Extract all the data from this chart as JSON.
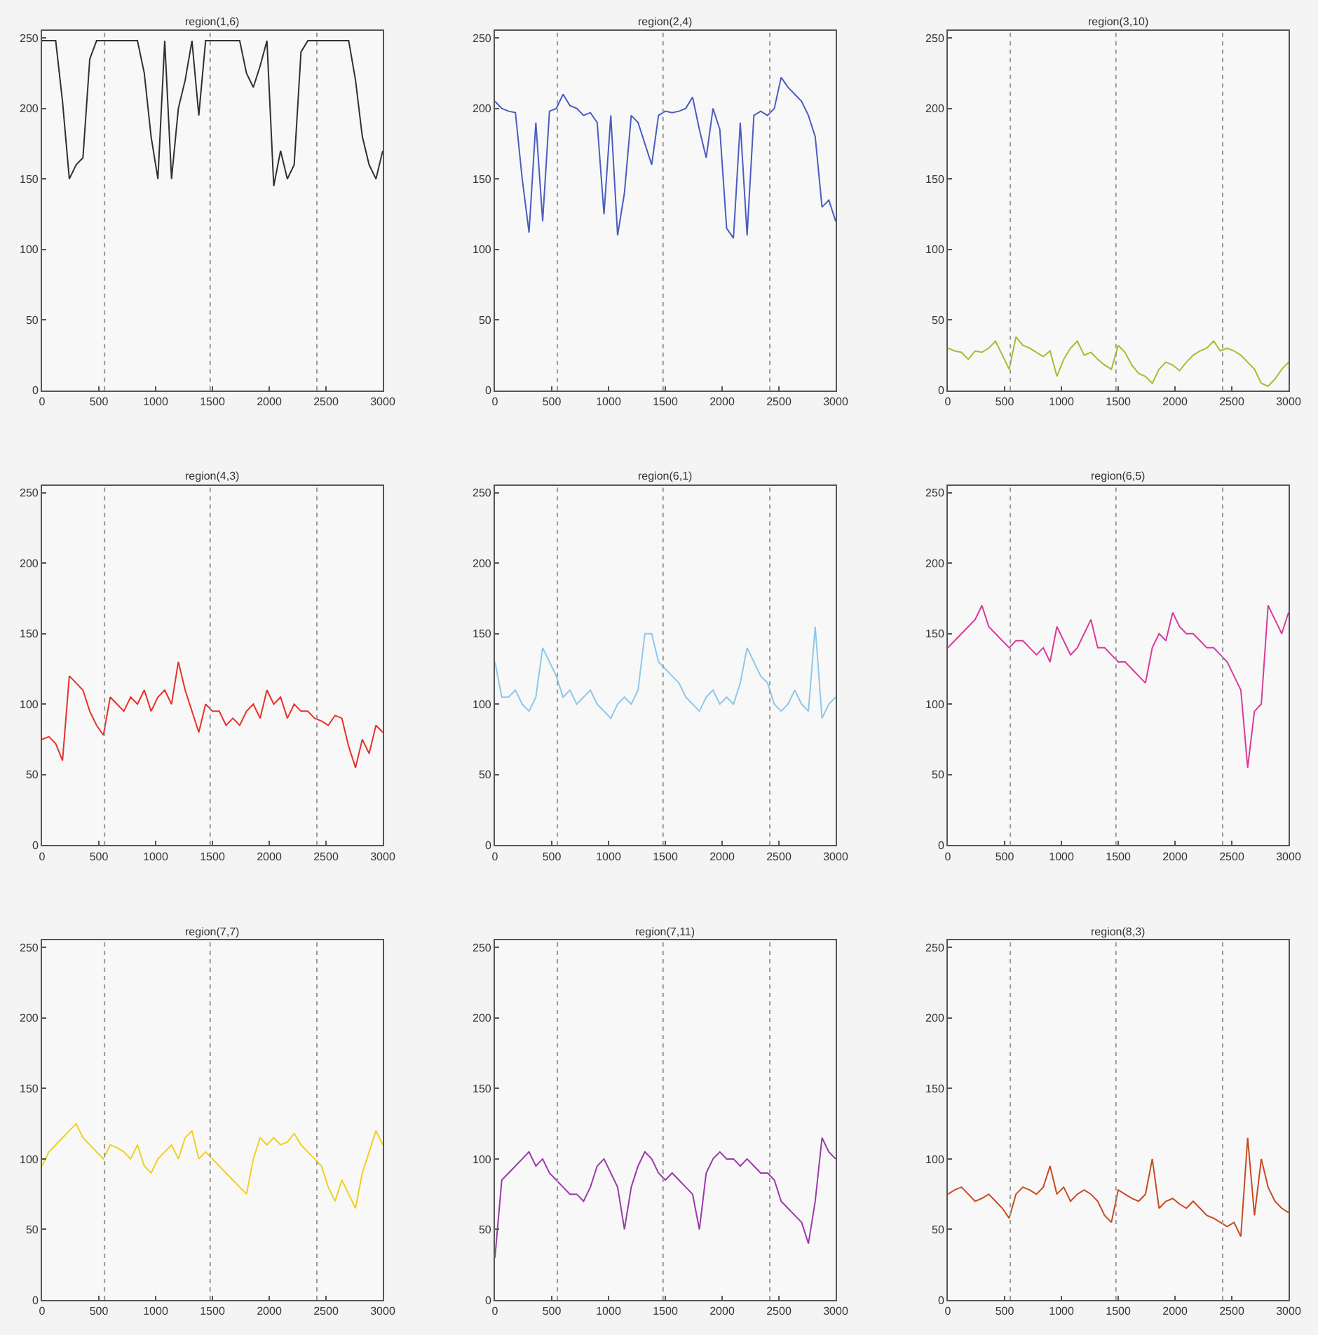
{
  "chart_data": [
    {
      "type": "line",
      "title": "region(1,6)",
      "x": [
        0,
        60,
        120,
        180,
        240,
        300,
        360,
        420,
        480,
        540,
        600,
        660,
        720,
        780,
        840,
        900,
        960,
        1020,
        1080,
        1140,
        1200,
        1260,
        1320,
        1380,
        1440,
        1500,
        1560,
        1620,
        1680,
        1740,
        1800,
        1860,
        1920,
        1980,
        2040,
        2100,
        2160,
        2220,
        2280,
        2340,
        2400,
        2460,
        2520,
        2580,
        2640,
        2700,
        2760,
        2820,
        2880,
        2940,
        3000
      ],
      "series": [
        {
          "color": "#303030",
          "values": [
            248,
            248,
            248,
            205,
            150,
            160,
            165,
            235,
            248,
            248,
            248,
            248,
            248,
            248,
            248,
            225,
            180,
            150,
            248,
            150,
            200,
            220,
            248,
            195,
            248,
            248,
            248,
            248,
            248,
            248,
            225,
            215,
            230,
            248,
            145,
            170,
            150,
            160,
            240,
            248,
            248,
            248,
            248,
            248,
            248,
            248,
            220,
            180,
            160,
            150,
            170
          ]
        }
      ],
      "xlim": [
        0,
        3000
      ],
      "ylim": [
        0,
        255
      ],
      "xticks": [
        0,
        500,
        1000,
        1500,
        2000,
        2500,
        3000
      ],
      "yticks": [
        0,
        50,
        100,
        150,
        200,
        250
      ],
      "ref_lines": [
        {
          "axis": "x",
          "value": 550,
          "line_style": "dotted",
          "color": "#999999"
        },
        {
          "axis": "x",
          "value": 1480,
          "line_style": "dotted",
          "color": "#999999"
        },
        {
          "axis": "x",
          "value": 2420,
          "line_style": "dotted",
          "color": "#999999"
        }
      ]
    },
    {
      "type": "line",
      "title": "region(2,4)",
      "x": [
        0,
        60,
        120,
        180,
        240,
        300,
        360,
        420,
        480,
        540,
        600,
        660,
        720,
        780,
        840,
        900,
        960,
        1020,
        1080,
        1140,
        1200,
        1260,
        1320,
        1380,
        1440,
        1500,
        1560,
        1620,
        1680,
        1740,
        1800,
        1860,
        1920,
        1980,
        2040,
        2100,
        2160,
        2220,
        2280,
        2340,
        2400,
        2460,
        2520,
        2580,
        2640,
        2700,
        2760,
        2820,
        2880,
        2940,
        3000
      ],
      "series": [
        {
          "color": "#4a5cc0",
          "values": [
            205,
            200,
            198,
            197,
            150,
            112,
            190,
            120,
            198,
            200,
            210,
            202,
            200,
            195,
            197,
            190,
            125,
            195,
            110,
            140,
            195,
            190,
            175,
            160,
            195,
            198,
            197,
            198,
            200,
            208,
            185,
            165,
            200,
            185,
            115,
            108,
            190,
            110,
            195,
            198,
            195,
            200,
            222,
            215,
            210,
            205,
            195,
            180,
            130,
            135,
            120
          ]
        }
      ],
      "xlim": [
        0,
        3000
      ],
      "ylim": [
        0,
        255
      ],
      "xticks": [
        0,
        500,
        1000,
        1500,
        2000,
        2500,
        3000
      ],
      "yticks": [
        0,
        50,
        100,
        150,
        200,
        250
      ],
      "ref_lines": [
        {
          "axis": "x",
          "value": 550,
          "line_style": "dotted",
          "color": "#999999"
        },
        {
          "axis": "x",
          "value": 1480,
          "line_style": "dotted",
          "color": "#999999"
        },
        {
          "axis": "x",
          "value": 2420,
          "line_style": "dotted",
          "color": "#999999"
        }
      ]
    },
    {
      "type": "line",
      "title": "region(3,10)",
      "x": [
        0,
        60,
        120,
        180,
        240,
        300,
        360,
        420,
        480,
        540,
        600,
        660,
        720,
        780,
        840,
        900,
        960,
        1020,
        1080,
        1140,
        1200,
        1260,
        1320,
        1380,
        1440,
        1500,
        1560,
        1620,
        1680,
        1740,
        1800,
        1860,
        1920,
        1980,
        2040,
        2100,
        2160,
        2220,
        2280,
        2340,
        2400,
        2460,
        2520,
        2580,
        2640,
        2700,
        2760,
        2820,
        2880,
        2940,
        3000
      ],
      "series": [
        {
          "color": "#a0c030",
          "values": [
            30,
            28,
            27,
            22,
            28,
            27,
            30,
            35,
            25,
            15,
            38,
            32,
            30,
            27,
            24,
            28,
            10,
            22,
            30,
            35,
            25,
            27,
            22,
            18,
            15,
            32,
            27,
            18,
            12,
            10,
            5,
            15,
            20,
            18,
            14,
            20,
            25,
            28,
            30,
            35,
            28,
            30,
            28,
            25,
            20,
            15,
            5,
            3,
            8,
            15,
            20
          ]
        }
      ],
      "xlim": [
        0,
        3000
      ],
      "ylim": [
        0,
        255
      ],
      "xticks": [
        0,
        500,
        1000,
        1500,
        2000,
        2500,
        3000
      ],
      "yticks": [
        0,
        50,
        100,
        150,
        200,
        250
      ],
      "ref_lines": [
        {
          "axis": "x",
          "value": 550,
          "line_style": "dotted",
          "color": "#999999"
        },
        {
          "axis": "x",
          "value": 1480,
          "line_style": "dotted",
          "color": "#999999"
        },
        {
          "axis": "x",
          "value": 2420,
          "line_style": "dotted",
          "color": "#999999"
        }
      ]
    },
    {
      "type": "line",
      "title": "region(4,3)",
      "x": [
        0,
        60,
        120,
        180,
        240,
        300,
        360,
        420,
        480,
        540,
        600,
        660,
        720,
        780,
        840,
        900,
        960,
        1020,
        1080,
        1140,
        1200,
        1260,
        1320,
        1380,
        1440,
        1500,
        1560,
        1620,
        1680,
        1740,
        1800,
        1860,
        1920,
        1980,
        2040,
        2100,
        2160,
        2220,
        2280,
        2340,
        2400,
        2460,
        2520,
        2580,
        2640,
        2700,
        2760,
        2820,
        2880,
        2940,
        3000
      ],
      "series": [
        {
          "color": "#e8302a",
          "values": [
            75,
            77,
            72,
            60,
            120,
            115,
            110,
            95,
            85,
            78,
            105,
            100,
            95,
            105,
            100,
            110,
            95,
            105,
            110,
            100,
            130,
            110,
            95,
            80,
            100,
            95,
            95,
            85,
            90,
            85,
            95,
            100,
            90,
            110,
            100,
            105,
            90,
            100,
            95,
            95,
            90,
            88,
            85,
            92,
            90,
            70,
            55,
            75,
            65,
            85,
            80
          ]
        }
      ],
      "xlim": [
        0,
        3000
      ],
      "ylim": [
        0,
        255
      ],
      "xticks": [
        0,
        500,
        1000,
        1500,
        2000,
        2500,
        3000
      ],
      "yticks": [
        0,
        50,
        100,
        150,
        200,
        250
      ],
      "ref_lines": [
        {
          "axis": "x",
          "value": 550,
          "line_style": "dotted",
          "color": "#999999"
        },
        {
          "axis": "x",
          "value": 1480,
          "line_style": "dotted",
          "color": "#999999"
        },
        {
          "axis": "x",
          "value": 2420,
          "line_style": "dotted",
          "color": "#999999"
        }
      ]
    },
    {
      "type": "line",
      "title": "region(6,1)",
      "x": [
        0,
        60,
        120,
        180,
        240,
        300,
        360,
        420,
        480,
        540,
        600,
        660,
        720,
        780,
        840,
        900,
        960,
        1020,
        1080,
        1140,
        1200,
        1260,
        1320,
        1380,
        1440,
        1500,
        1560,
        1620,
        1680,
        1740,
        1800,
        1860,
        1920,
        1980,
        2040,
        2100,
        2160,
        2220,
        2280,
        2340,
        2400,
        2460,
        2520,
        2580,
        2640,
        2700,
        2760,
        2820,
        2880,
        2940,
        3000
      ],
      "series": [
        {
          "color": "#8fc8e8",
          "values": [
            130,
            105,
            105,
            110,
            100,
            95,
            105,
            140,
            130,
            120,
            105,
            110,
            100,
            105,
            110,
            100,
            95,
            90,
            100,
            105,
            100,
            110,
            150,
            150,
            130,
            125,
            120,
            115,
            105,
            100,
            95,
            105,
            110,
            100,
            105,
            100,
            115,
            140,
            130,
            120,
            115,
            100,
            95,
            100,
            110,
            100,
            95,
            155,
            90,
            100,
            105
          ]
        }
      ],
      "xlim": [
        0,
        3000
      ],
      "ylim": [
        0,
        255
      ],
      "xticks": [
        0,
        500,
        1000,
        1500,
        2000,
        2500,
        3000
      ],
      "yticks": [
        0,
        50,
        100,
        150,
        200,
        250
      ],
      "ref_lines": [
        {
          "axis": "x",
          "value": 550,
          "line_style": "dotted",
          "color": "#999999"
        },
        {
          "axis": "x",
          "value": 1480,
          "line_style": "dotted",
          "color": "#999999"
        },
        {
          "axis": "x",
          "value": 2420,
          "line_style": "dotted",
          "color": "#999999"
        }
      ]
    },
    {
      "type": "line",
      "title": "region(6,5)",
      "x": [
        0,
        60,
        120,
        180,
        240,
        300,
        360,
        420,
        480,
        540,
        600,
        660,
        720,
        780,
        840,
        900,
        960,
        1020,
        1080,
        1140,
        1200,
        1260,
        1320,
        1380,
        1440,
        1500,
        1560,
        1620,
        1680,
        1740,
        1800,
        1860,
        1920,
        1980,
        2040,
        2100,
        2160,
        2220,
        2280,
        2340,
        2400,
        2460,
        2520,
        2580,
        2640,
        2700,
        2760,
        2820,
        2880,
        2940,
        3000
      ],
      "series": [
        {
          "color": "#d93a9a",
          "values": [
            140,
            145,
            150,
            155,
            160,
            170,
            155,
            150,
            145,
            140,
            145,
            145,
            140,
            135,
            140,
            130,
            155,
            145,
            135,
            140,
            150,
            160,
            140,
            140,
            135,
            130,
            130,
            125,
            120,
            115,
            140,
            150,
            145,
            165,
            155,
            150,
            150,
            145,
            140,
            140,
            135,
            130,
            120,
            110,
            55,
            95,
            100,
            170,
            160,
            150,
            165
          ]
        }
      ],
      "xlim": [
        0,
        3000
      ],
      "ylim": [
        0,
        255
      ],
      "xticks": [
        0,
        500,
        1000,
        1500,
        2000,
        2500,
        3000
      ],
      "yticks": [
        0,
        50,
        100,
        150,
        200,
        250
      ],
      "ref_lines": [
        {
          "axis": "x",
          "value": 550,
          "line_style": "dotted",
          "color": "#999999"
        },
        {
          "axis": "x",
          "value": 1480,
          "line_style": "dotted",
          "color": "#999999"
        },
        {
          "axis": "x",
          "value": 2420,
          "line_style": "dotted",
          "color": "#999999"
        }
      ]
    },
    {
      "type": "line",
      "title": "region(7,7)",
      "x": [
        0,
        60,
        120,
        180,
        240,
        300,
        360,
        420,
        480,
        540,
        600,
        660,
        720,
        780,
        840,
        900,
        960,
        1020,
        1080,
        1140,
        1200,
        1260,
        1320,
        1380,
        1440,
        1500,
        1560,
        1620,
        1680,
        1740,
        1800,
        1860,
        1920,
        1980,
        2040,
        2100,
        2160,
        2220,
        2280,
        2340,
        2400,
        2460,
        2520,
        2580,
        2640,
        2700,
        2760,
        2820,
        2880,
        2940,
        3000
      ],
      "series": [
        {
          "color": "#f0d020",
          "values": [
            95,
            105,
            110,
            115,
            120,
            125,
            115,
            110,
            105,
            100,
            110,
            108,
            105,
            100,
            110,
            95,
            90,
            100,
            105,
            110,
            100,
            115,
            120,
            100,
            105,
            100,
            95,
            90,
            85,
            80,
            75,
            100,
            115,
            110,
            115,
            110,
            112,
            118,
            110,
            105,
            100,
            95,
            80,
            70,
            85,
            75,
            65,
            90,
            105,
            120,
            110
          ]
        }
      ],
      "xlim": [
        0,
        3000
      ],
      "ylim": [
        0,
        255
      ],
      "xticks": [
        0,
        500,
        1000,
        1500,
        2000,
        2500,
        3000
      ],
      "yticks": [
        0,
        50,
        100,
        150,
        200,
        250
      ],
      "ref_lines": [
        {
          "axis": "x",
          "value": 550,
          "line_style": "dotted",
          "color": "#999999"
        },
        {
          "axis": "x",
          "value": 1480,
          "line_style": "dotted",
          "color": "#999999"
        },
        {
          "axis": "x",
          "value": 2420,
          "line_style": "dotted",
          "color": "#999999"
        }
      ]
    },
    {
      "type": "line",
      "title": "region(7,11)",
      "x": [
        0,
        60,
        120,
        180,
        240,
        300,
        360,
        420,
        480,
        540,
        600,
        660,
        720,
        780,
        840,
        900,
        960,
        1020,
        1080,
        1140,
        1200,
        1260,
        1320,
        1380,
        1440,
        1500,
        1560,
        1620,
        1680,
        1740,
        1800,
        1860,
        1920,
        1980,
        2040,
        2100,
        2160,
        2220,
        2280,
        2340,
        2400,
        2460,
        2520,
        2580,
        2640,
        2700,
        2760,
        2820,
        2880,
        2940,
        3000
      ],
      "series": [
        {
          "color": "#9a3aaa",
          "values": [
            30,
            85,
            90,
            95,
            100,
            105,
            95,
            100,
            90,
            85,
            80,
            75,
            75,
            70,
            80,
            95,
            100,
            90,
            80,
            50,
            80,
            95,
            105,
            100,
            90,
            85,
            90,
            85,
            80,
            75,
            50,
            90,
            100,
            105,
            100,
            100,
            95,
            100,
            95,
            90,
            90,
            85,
            70,
            65,
            60,
            55,
            40,
            70,
            115,
            105,
            100
          ]
        }
      ],
      "xlim": [
        0,
        3000
      ],
      "ylim": [
        0,
        255
      ],
      "xticks": [
        0,
        500,
        1000,
        1500,
        2000,
        2500,
        3000
      ],
      "yticks": [
        0,
        50,
        100,
        150,
        200,
        250
      ],
      "ref_lines": [
        {
          "axis": "x",
          "value": 550,
          "line_style": "dotted",
          "color": "#999999"
        },
        {
          "axis": "x",
          "value": 1480,
          "line_style": "dotted",
          "color": "#999999"
        },
        {
          "axis": "x",
          "value": 2420,
          "line_style": "dotted",
          "color": "#999999"
        }
      ]
    },
    {
      "type": "line",
      "title": "region(8,3)",
      "x": [
        0,
        60,
        120,
        180,
        240,
        300,
        360,
        420,
        480,
        540,
        600,
        660,
        720,
        780,
        840,
        900,
        960,
        1020,
        1080,
        1140,
        1200,
        1260,
        1320,
        1380,
        1440,
        1500,
        1560,
        1620,
        1680,
        1740,
        1800,
        1860,
        1920,
        1980,
        2040,
        2100,
        2160,
        2220,
        2280,
        2340,
        2400,
        2460,
        2520,
        2580,
        2640,
        2700,
        2760,
        2820,
        2880,
        2940,
        3000
      ],
      "series": [
        {
          "color": "#c84a20",
          "values": [
            75,
            78,
            80,
            75,
            70,
            72,
            75,
            70,
            65,
            58,
            75,
            80,
            78,
            75,
            80,
            95,
            75,
            80,
            70,
            75,
            78,
            75,
            70,
            60,
            55,
            78,
            75,
            72,
            70,
            75,
            100,
            65,
            70,
            72,
            68,
            65,
            70,
            65,
            60,
            58,
            55,
            52,
            55,
            45,
            115,
            60,
            100,
            80,
            70,
            65,
            62
          ]
        }
      ],
      "xlim": [
        0,
        3000
      ],
      "ylim": [
        0,
        255
      ],
      "xticks": [
        0,
        500,
        1000,
        1500,
        2000,
        2500,
        3000
      ],
      "yticks": [
        0,
        50,
        100,
        150,
        200,
        250
      ],
      "ref_lines": [
        {
          "axis": "x",
          "value": 550,
          "line_style": "dotted",
          "color": "#999999"
        },
        {
          "axis": "x",
          "value": 1480,
          "line_style": "dotted",
          "color": "#999999"
        },
        {
          "axis": "x",
          "value": 2420,
          "line_style": "dotted",
          "color": "#999999"
        }
      ]
    }
  ]
}
